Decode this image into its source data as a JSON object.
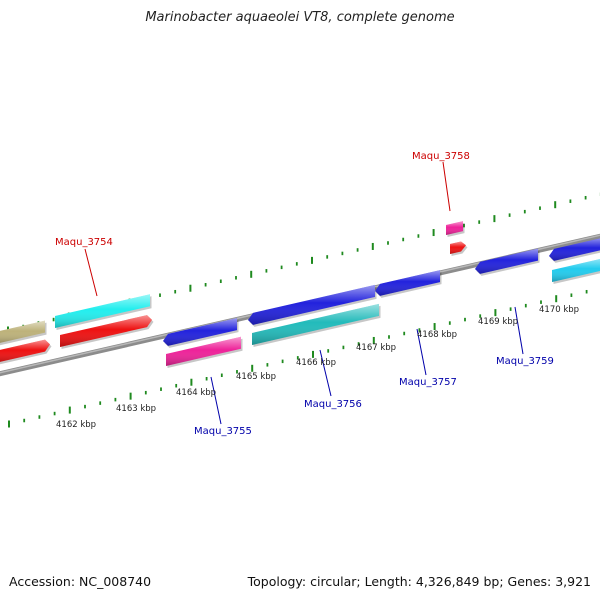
{
  "title": "Marinobacter aquaeolei VT8, complete genome",
  "accession": "Accession: NC_008740",
  "summary": "Topology: circular; Length: 4,326,849 bp; Genes: 3,921",
  "colors": {
    "backbone": "#8c8c8c",
    "tick": "#1f8a1f",
    "label_forward": "#cc0000",
    "label_reverse": "#0000aa",
    "olive": "#bdb27a",
    "red": "#ee1111",
    "cyan": "#22eeee",
    "blue": "#2222dd",
    "magenta": "#ee2299",
    "teal": "#22bbbb",
    "skyblue": "#22ccee"
  },
  "kbp_labels": [
    "4162 kbp",
    "4163 kbp",
    "4164 kbp",
    "4165 kbp",
    "4166 kbp",
    "4167 kbp",
    "4168 kbp",
    "4169 kbp",
    "4170 kbp"
  ],
  "gene_labels": [
    {
      "text": "Maqu_3754",
      "strand": "forward"
    },
    {
      "text": "Maqu_3758",
      "strand": "forward"
    },
    {
      "text": "Maqu_3755",
      "strand": "reverse"
    },
    {
      "text": "Maqu_3756",
      "strand": "reverse"
    },
    {
      "text": "Maqu_3757",
      "strand": "reverse"
    },
    {
      "text": "Maqu_3759",
      "strand": "reverse"
    }
  ]
}
